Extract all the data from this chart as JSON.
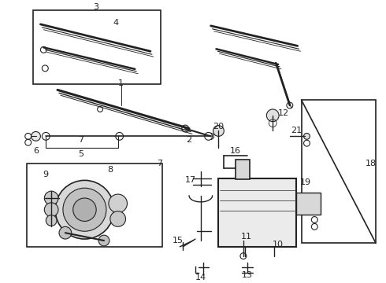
{
  "bg_color": "#ffffff",
  "line_color": "#222222",
  "fig_width": 4.9,
  "fig_height": 3.6,
  "dpi": 100,
  "lw": 1.0
}
